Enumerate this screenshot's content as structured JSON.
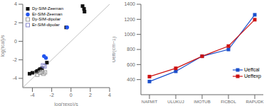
{
  "chart_data": [
    {
      "type": "scatter",
      "x_label": "log(τexp)/s",
      "y_label": "log(τcal)/s",
      "xlim": [
        -5,
        4
      ],
      "ylim": [
        -5,
        4
      ],
      "xticks": [
        -4,
        -2,
        0,
        2,
        4
      ],
      "yticks": [
        -4,
        -2,
        0,
        2,
        4
      ],
      "legend": "upper left",
      "series": [
        {
          "type": "line",
          "color": "#b0b0b0",
          "line_style": "solid",
          "x": [
            -5,
            4
          ],
          "values": [
            -5,
            4
          ]
        },
        {
          "name": "Dy-SIM-Zeeman",
          "color": "#111111",
          "marker": "square",
          "x": [
            -4.3,
            -4.0,
            -3.6,
            -3.5,
            -3.3,
            -3.2,
            -3.0,
            -2.5,
            -0.5,
            1.2,
            1.35,
            1.4
          ],
          "values": [
            -3.5,
            -3.4,
            -3.3,
            -3.2,
            -3.1,
            -3.0,
            -2.9,
            -2.3,
            1.5,
            3.8,
            3.5,
            3.2
          ]
        },
        {
          "name": "Er-SIM-Zeeman",
          "color": "#2255ee",
          "marker": "circle",
          "x": [
            -2.8,
            -2.6,
            -0.4
          ],
          "values": [
            -1.6,
            -1.8,
            1.5
          ]
        },
        {
          "name": "Dy-SIM-dipolar",
          "color": "#999999",
          "marker": "open_square",
          "x": [
            -3.5,
            -3.2,
            -3.0,
            -2.85,
            -2.7
          ],
          "values": [
            -3.6,
            -3.4,
            -3.3,
            -3.5,
            -3.35
          ]
        },
        {
          "name": "Er-SIM-dipolar",
          "color": "#8888cc",
          "marker": "open_square",
          "x": [
            -2.9,
            -2.75
          ],
          "values": [
            -2.6,
            -2.7
          ]
        }
      ]
    },
    {
      "type": "line",
      "y_label": "Ueff/(cm−1)",
      "categories": [
        "NAFMIT",
        "ULUKUJ",
        "IMOTUB",
        "FICBOL",
        "RAPUDK"
      ],
      "ylim": [
        200,
        1400
      ],
      "yticks": [
        400,
        600,
        800,
        1000,
        1200,
        1400
      ],
      "legend": "lower right",
      "series": [
        {
          "name": "Ueffcal",
          "color": "#1a4fcc",
          "marker": "square",
          "values": [
            375,
            510,
            710,
            800,
            1260
          ]
        },
        {
          "name": "Ueffexp",
          "color": "#cc1111",
          "marker": "square",
          "values": [
            440,
            550,
            710,
            845,
            1195
          ]
        }
      ]
    }
  ]
}
